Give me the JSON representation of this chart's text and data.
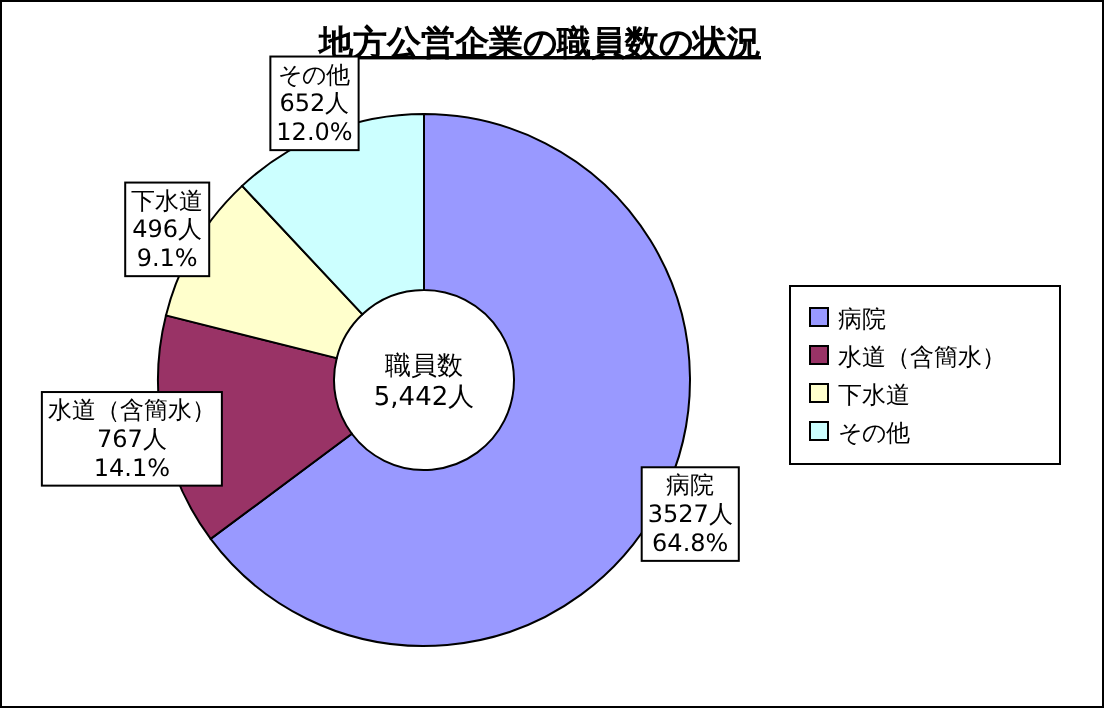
{
  "chart_data": {
    "type": "donut",
    "title": "地方公営企業の職員数の状況",
    "categories": [
      "病院",
      "水道（含簡水）",
      "下水道",
      "その他"
    ],
    "values": [
      3527,
      767,
      496,
      652
    ],
    "colors": [
      "#9999ff",
      "#993366",
      "#ffffcc",
      "#ccffff"
    ],
    "value_labels": [
      "3527人\n64.8%",
      "767人\n14.1%",
      "496人\n9.1%",
      "652人\n12.0%"
    ],
    "annotations": [
      "職員数\n5,442人"
    ],
    "legend": "right"
  }
}
